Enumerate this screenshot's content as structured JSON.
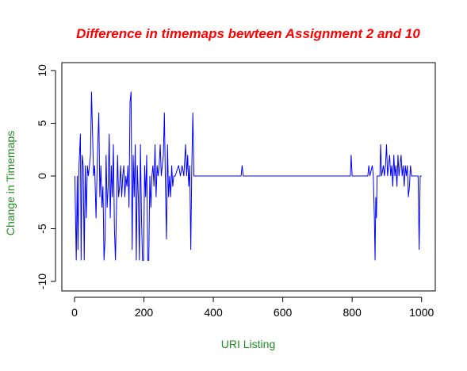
{
  "chart_data": {
    "type": "line",
    "title": "Difference in timemaps bewteen Assignment 2 and 10",
    "x_label": "URI Listing",
    "y_label": "Change in Timemaps",
    "xlim": [
      -36.5,
      1039.5
    ],
    "ylim": [
      -10.9,
      10.75
    ],
    "xticks": [
      0,
      200,
      400,
      600,
      800,
      1000
    ],
    "yticks": [
      -10,
      -5,
      0,
      5,
      10
    ],
    "series": [
      {
        "color": "#0000ff",
        "x": [
          1,
          3,
          5,
          8,
          10,
          13,
          17,
          19,
          22,
          25,
          28,
          31,
          34,
          37,
          40,
          43,
          46,
          49,
          52,
          55,
          58,
          62,
          66,
          70,
          73,
          76,
          79,
          82,
          85,
          88,
          91,
          94,
          97,
          100,
          103,
          106,
          109,
          112,
          115,
          118,
          121,
          124,
          127,
          130,
          133,
          136,
          139,
          142,
          145,
          148,
          151,
          154,
          157,
          160,
          163,
          166,
          169,
          172,
          175,
          178,
          181,
          184,
          187,
          190,
          193,
          196,
          199,
          202,
          205,
          208,
          211,
          214,
          217,
          220,
          223,
          226,
          229,
          232,
          235,
          238,
          241,
          244,
          247,
          250,
          253,
          256,
          259,
          262,
          265,
          268,
          271,
          274,
          277,
          280,
          283,
          286,
          290,
          300,
          305,
          310,
          315,
          320,
          323,
          326,
          329,
          332,
          335,
          338,
          341,
          344,
          480,
          483,
          486,
          795,
          797,
          800,
          845,
          848,
          851,
          858,
          861,
          864,
          866,
          868,
          870,
          872,
          880,
          882,
          885,
          890,
          893,
          896,
          899,
          902,
          905,
          908,
          911,
          914,
          917,
          920,
          923,
          926,
          929,
          932,
          935,
          938,
          941,
          944,
          947,
          950,
          953,
          956,
          959,
          962,
          965,
          968,
          971,
          980,
          990,
          993,
          996,
          1000
        ],
        "values": [
          0,
          -4,
          -8,
          0,
          -7,
          1,
          4,
          -8,
          2,
          1,
          -8,
          1,
          -4,
          1,
          0,
          1,
          2,
          8,
          4,
          0,
          1,
          -4,
          2,
          6,
          -2,
          1,
          -3,
          -1,
          -8,
          -6,
          2,
          -3,
          -1,
          4,
          -4,
          1,
          -2,
          3,
          -5,
          -8,
          -3,
          2,
          -2,
          -1,
          1,
          -2,
          0,
          1,
          -2,
          0,
          -1,
          1,
          -3,
          7,
          8,
          -7,
          2,
          -2,
          3,
          -8,
          1,
          -2,
          -8,
          3,
          -4,
          -8,
          -8,
          1,
          -2,
          2,
          -8,
          -8,
          0,
          -3,
          0,
          1,
          -1,
          3,
          -2,
          1,
          0,
          1,
          3,
          0,
          1,
          2,
          6,
          -1,
          -6,
          3,
          -2,
          0,
          -2,
          1,
          -1,
          0,
          0,
          1,
          0,
          1,
          0,
          3,
          0,
          2,
          -1,
          1,
          -7,
          1,
          6,
          0,
          0,
          1,
          0,
          0,
          2,
          0,
          0,
          1,
          0,
          1,
          0,
          -4,
          -8,
          -2,
          -4,
          0,
          0,
          3,
          0,
          1,
          0,
          1,
          3,
          0,
          1,
          2,
          0,
          1,
          -1,
          2,
          0,
          1,
          -1,
          2,
          0,
          1,
          2,
          0,
          1,
          -1,
          1,
          0,
          1,
          -2,
          -1,
          1,
          0,
          0,
          0,
          -7,
          0,
          0
        ]
      }
    ]
  }
}
